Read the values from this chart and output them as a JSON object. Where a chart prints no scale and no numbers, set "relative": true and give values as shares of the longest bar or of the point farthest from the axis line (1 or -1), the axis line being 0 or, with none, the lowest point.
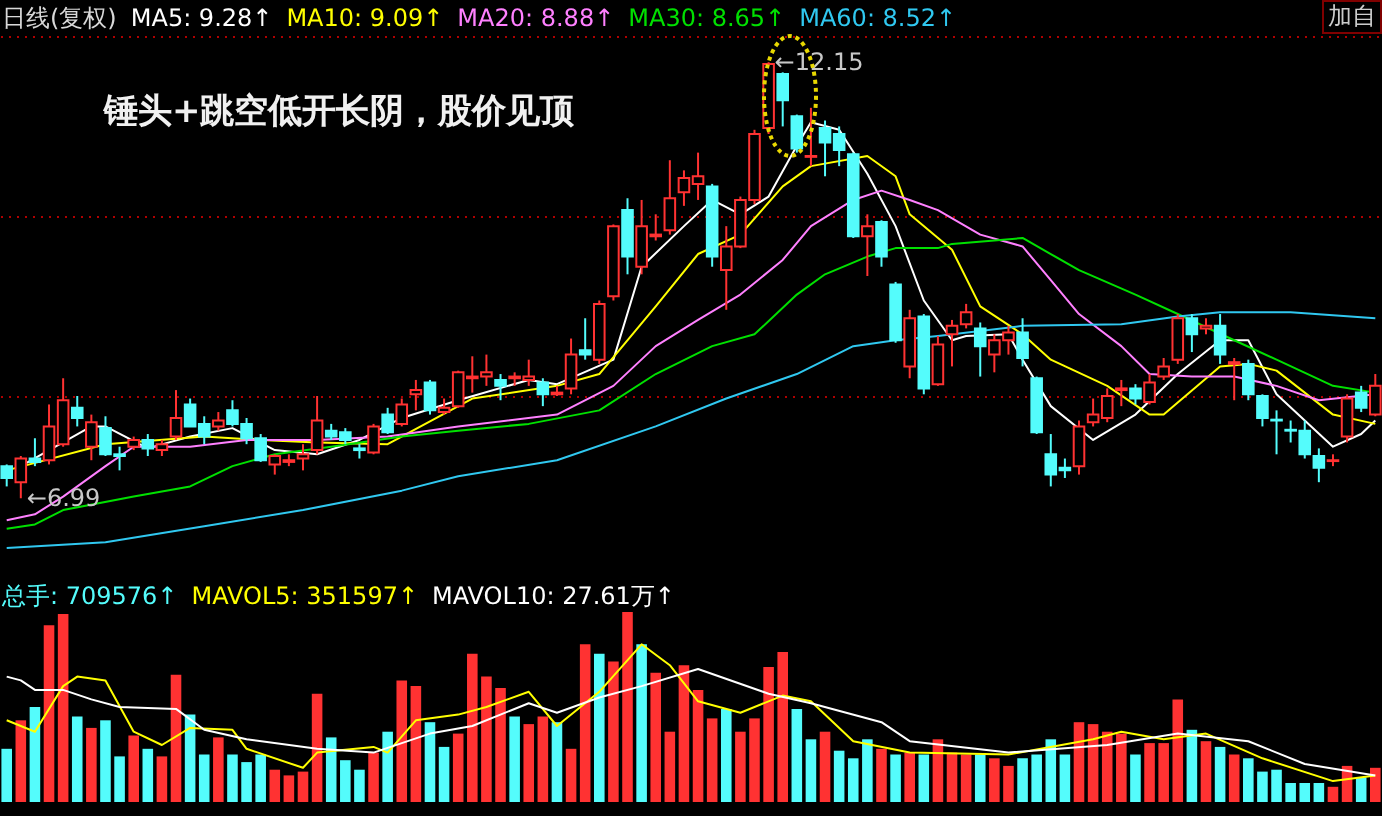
{
  "chart_data": [
    {
      "type": "candlestick",
      "categories": [
        null,
        null,
        null,
        null,
        null,
        null,
        null,
        null,
        null,
        null,
        null,
        null,
        null,
        null,
        null,
        null,
        null,
        null,
        null,
        null,
        null,
        null,
        null,
        null,
        null,
        null,
        null,
        null,
        null,
        null,
        null,
        null,
        null,
        null,
        null,
        null,
        null,
        null,
        null,
        null,
        null,
        null,
        null,
        null,
        null,
        null,
        null,
        null,
        null,
        null,
        null,
        null,
        null,
        null,
        null,
        null,
        null,
        null,
        null,
        null,
        null,
        null,
        null,
        null,
        null,
        null,
        null,
        null,
        null,
        null,
        null,
        null,
        null,
        null,
        null,
        null,
        null,
        null,
        null,
        null,
        null,
        null,
        null,
        null,
        null,
        null,
        null,
        null,
        null,
        null,
        null,
        null,
        null,
        null,
        null,
        null,
        null,
        null
      ],
      "ohlc": [
        [
          7.37,
          7.39,
          7.13,
          7.23
        ],
        [
          7.18,
          7.49,
          6.99,
          7.46
        ],
        [
          7.46,
          7.7,
          7.37,
          7.42
        ],
        [
          7.44,
          8.1,
          7.39,
          7.84
        ],
        [
          7.63,
          8.41,
          7.6,
          8.15
        ],
        [
          8.06,
          8.2,
          7.84,
          7.94
        ],
        [
          7.6,
          7.98,
          7.44,
          7.89
        ],
        [
          7.82,
          7.96,
          7.49,
          7.51
        ],
        [
          7.51,
          7.6,
          7.32,
          7.49
        ],
        [
          7.6,
          7.72,
          7.56,
          7.68
        ],
        [
          7.68,
          7.75,
          7.49,
          7.58
        ],
        [
          7.56,
          7.68,
          7.49,
          7.63
        ],
        [
          7.72,
          8.27,
          7.68,
          7.94
        ],
        [
          8.1,
          8.17,
          7.84,
          7.84
        ],
        [
          7.87,
          7.96,
          7.63,
          7.72
        ],
        [
          7.84,
          8.01,
          7.79,
          7.91
        ],
        [
          8.03,
          8.15,
          7.84,
          7.87
        ],
        [
          7.87,
          7.94,
          7.63,
          7.7
        ],
        [
          7.7,
          7.75,
          7.42,
          7.44
        ],
        [
          7.39,
          7.51,
          7.27,
          7.49
        ],
        [
          7.42,
          7.51,
          7.37,
          7.44
        ],
        [
          7.46,
          7.63,
          7.32,
          7.51
        ],
        [
          7.56,
          8.2,
          7.51,
          7.91
        ],
        [
          7.79,
          7.87,
          7.68,
          7.72
        ],
        [
          7.77,
          7.82,
          7.63,
          7.68
        ],
        [
          7.58,
          7.63,
          7.46,
          7.56
        ],
        [
          7.53,
          7.87,
          7.51,
          7.84
        ],
        [
          7.98,
          8.06,
          7.75,
          7.77
        ],
        [
          7.87,
          8.17,
          7.84,
          8.1
        ],
        [
          8.22,
          8.39,
          8.03,
          8.27
        ],
        [
          8.36,
          8.39,
          7.98,
          8.03
        ],
        [
          8.01,
          8.17,
          7.98,
          8.06
        ],
        [
          8.08,
          8.5,
          8.06,
          8.48
        ],
        [
          8.41,
          8.67,
          8.24,
          8.43
        ],
        [
          8.43,
          8.69,
          8.32,
          8.48
        ],
        [
          8.39,
          8.46,
          8.15,
          8.32
        ],
        [
          8.41,
          8.48,
          8.32,
          8.43
        ],
        [
          8.39,
          8.63,
          8.32,
          8.43
        ],
        [
          8.36,
          8.41,
          8.08,
          8.22
        ],
        [
          8.22,
          8.32,
          8.2,
          8.24
        ],
        [
          8.29,
          8.88,
          8.22,
          8.69
        ],
        [
          8.74,
          9.12,
          8.63,
          8.69
        ],
        [
          8.63,
          9.33,
          8.58,
          9.29
        ],
        [
          9.38,
          10.23,
          9.33,
          10.21
        ],
        [
          10.4,
          10.54,
          9.64,
          9.85
        ],
        [
          9.73,
          10.52,
          9.64,
          10.21
        ],
        [
          10.09,
          10.35,
          10.04,
          10.11
        ],
        [
          10.16,
          10.99,
          10.11,
          10.54
        ],
        [
          10.61,
          10.87,
          10.45,
          10.78
        ],
        [
          10.71,
          11.08,
          10.52,
          10.8
        ],
        [
          10.68,
          10.71,
          9.73,
          9.85
        ],
        [
          9.69,
          10.21,
          9.22,
          9.97
        ],
        [
          9.97,
          10.56,
          9.95,
          10.52
        ],
        [
          10.52,
          11.35,
          10.47,
          11.3
        ],
        [
          11.37,
          12.15,
          11.3,
          12.13
        ],
        [
          12.01,
          12.03,
          11.39,
          11.7
        ],
        [
          11.51,
          11.53,
          11.08,
          11.13
        ],
        [
          11.03,
          11.61,
          10.92,
          11.04
        ],
        [
          11.37,
          11.46,
          10.8,
          11.2
        ],
        [
          11.3,
          11.39,
          10.92,
          11.11
        ],
        [
          11.06,
          11.08,
          10.07,
          10.09
        ],
        [
          10.09,
          10.35,
          9.62,
          10.21
        ],
        [
          10.26,
          10.28,
          9.73,
          9.85
        ],
        [
          9.52,
          9.55,
          8.83,
          8.86
        ],
        [
          8.55,
          9.22,
          8.41,
          9.12
        ],
        [
          9.14,
          9.17,
          8.22,
          8.29
        ],
        [
          8.34,
          8.91,
          8.32,
          8.81
        ],
        [
          8.93,
          9.1,
          8.55,
          9.03
        ],
        [
          9.05,
          9.29,
          9.0,
          9.19
        ],
        [
          9.0,
          9.07,
          8.43,
          8.79
        ],
        [
          8.69,
          8.93,
          8.48,
          8.86
        ],
        [
          8.86,
          9.03,
          8.69,
          8.95
        ],
        [
          8.95,
          9.12,
          8.55,
          8.65
        ],
        [
          8.41,
          8.43,
          7.75,
          7.77
        ],
        [
          7.51,
          7.75,
          7.13,
          7.27
        ],
        [
          7.35,
          7.46,
          7.23,
          7.32
        ],
        [
          7.37,
          7.91,
          7.27,
          7.84
        ],
        [
          7.89,
          8.17,
          7.84,
          7.98
        ],
        [
          7.94,
          8.29,
          7.89,
          8.2
        ],
        [
          8.27,
          8.39,
          8.08,
          8.29
        ],
        [
          8.29,
          8.34,
          8.1,
          8.17
        ],
        [
          8.13,
          8.46,
          8.1,
          8.36
        ],
        [
          8.43,
          8.65,
          8.39,
          8.55
        ],
        [
          8.63,
          9.17,
          8.58,
          9.12
        ],
        [
          9.12,
          9.17,
          8.72,
          8.93
        ],
        [
          9.0,
          9.12,
          8.93,
          9.03
        ],
        [
          9.03,
          9.17,
          8.58,
          8.69
        ],
        [
          8.58,
          8.65,
          8.15,
          8.6
        ],
        [
          8.58,
          8.63,
          8.15,
          8.22
        ],
        [
          8.2,
          8.22,
          7.84,
          7.94
        ],
        [
          7.92,
          8.03,
          7.51,
          7.91
        ],
        [
          7.8,
          7.91,
          7.65,
          7.79
        ],
        [
          7.79,
          7.91,
          7.46,
          7.51
        ],
        [
          7.49,
          7.58,
          7.18,
          7.35
        ],
        [
          7.43,
          7.51,
          7.37,
          7.44
        ],
        [
          7.72,
          8.22,
          7.65,
          8.17
        ],
        [
          8.24,
          8.32,
          8.01,
          8.06
        ],
        [
          7.98,
          8.46,
          7.96,
          8.32
        ]
      ],
      "series": [
        {
          "name": "MA5: 9.28↑",
          "type": "line",
          "color": "#ffffff",
          "values": [
            null,
            7.37,
            null,
            null,
            null,
            null,
            7.84,
            7.84,
            null,
            null,
            7.58,
            null,
            null,
            7.72,
            null,
            null,
            7.82,
            null,
            null,
            7.56,
            null,
            null,
            7.51,
            null,
            null,
            7.68,
            null,
            null,
            7.94,
            null,
            null,
            null,
            8.15,
            null,
            null,
            null,
            null,
            8.39,
            null,
            8.34,
            null,
            null,
            null,
            8.63,
            null,
            9.73,
            null,
            null,
            10.21,
            null,
            10.52,
            null,
            10.35,
            null,
            10.56,
            null,
            11.16,
            11.44,
            null,
            11.35,
            null,
            10.83,
            null,
            10.21,
            null,
            9.33,
            null,
            8.86,
            8.91,
            null,
            null,
            8.93,
            8.63,
            null,
            8.08,
            null,
            null,
            7.68,
            null,
            null,
            7.98,
            null,
            null,
            8.46,
            null,
            null,
            8.86,
            null,
            8.86,
            null,
            8.22,
            null,
            null,
            null,
            7.6,
            null,
            7.75,
            7.91
          ]
        },
        {
          "name": "MA10: 9.09↑",
          "type": "line",
          "color": "#ffff00",
          "values": [
            7.32,
            null,
            null,
            null,
            null,
            null,
            null,
            7.63,
            null,
            null,
            null,
            null,
            null,
            null,
            7.72,
            null,
            null,
            null,
            7.68,
            null,
            null,
            null,
            7.65,
            null,
            null,
            null,
            null,
            7.63,
            null,
            null,
            null,
            null,
            null,
            8.17,
            null,
            null,
            null,
            null,
            null,
            8.32,
            null,
            null,
            8.46,
            null,
            null,
            null,
            9.26,
            null,
            null,
            9.88,
            null,
            null,
            10.11,
            null,
            null,
            10.68,
            null,
            10.92,
            null,
            null,
            null,
            11.04,
            null,
            10.8,
            10.35,
            null,
            null,
            9.93,
            null,
            9.26,
            null,
            null,
            8.93,
            null,
            8.63,
            null,
            null,
            null,
            8.32,
            null,
            null,
            7.98,
            7.98,
            null,
            null,
            null,
            8.55,
            null,
            8.58,
            null,
            8.5,
            null,
            null,
            null,
            7.98,
            null,
            null,
            7.87
          ]
        },
        {
          "name": "MA20: 8.88↑",
          "type": "line",
          "color": "#ff80ff",
          "values": [
            6.73,
            null,
            6.8,
            null,
            7.01,
            null,
            null,
            7.37,
            null,
            7.6,
            null,
            null,
            null,
            7.6,
            null,
            null,
            null,
            7.68,
            null,
            null,
            null,
            null,
            7.68,
            null,
            null,
            null,
            null,
            7.72,
            null,
            null,
            null,
            null,
            7.84,
            null,
            null,
            null,
            null,
            null,
            null,
            7.98,
            null,
            null,
            null,
            8.32,
            null,
            null,
            8.79,
            null,
            null,
            9.1,
            null,
            null,
            9.4,
            null,
            null,
            9.81,
            null,
            10.21,
            null,
            null,
            10.52,
            null,
            10.63,
            null,
            10.52,
            null,
            10.4,
            null,
            null,
            10.11,
            null,
            null,
            9.97,
            null,
            9.57,
            null,
            9.17,
            null,
            null,
            8.79,
            null,
            8.46,
            null,
            null,
            8.43,
            null,
            null,
            8.43,
            null,
            null,
            8.32,
            null,
            null,
            8.15,
            null,
            null,
            null,
            8.22
          ]
        },
        {
          "name": "MA30: 8.65↑",
          "type": "line",
          "color": "#00e000",
          "values": [
            6.63,
            null,
            6.68,
            null,
            6.85,
            null,
            null,
            null,
            null,
            7.01,
            null,
            null,
            null,
            7.13,
            null,
            null,
            7.37,
            null,
            null,
            7.51,
            null,
            null,
            null,
            7.6,
            null,
            null,
            null,
            null,
            7.72,
            null,
            null,
            null,
            7.79,
            null,
            null,
            null,
            null,
            7.87,
            null,
            null,
            null,
            null,
            8.03,
            null,
            null,
            null,
            8.46,
            null,
            null,
            null,
            8.79,
            null,
            null,
            8.93,
            null,
            null,
            9.4,
            null,
            9.64,
            null,
            null,
            9.85,
            null,
            9.95,
            null,
            null,
            9.95,
            10.0,
            null,
            null,
            10.04,
            null,
            10.07,
            null,
            9.88,
            null,
            9.69,
            null,
            null,
            null,
            9.4,
            null,
            null,
            9.17,
            null,
            null,
            null,
            8.86,
            null,
            null,
            8.63,
            null,
            null,
            null,
            8.32,
            null,
            null,
            8.24
          ]
        },
        {
          "name": "MA60: 8.52↑",
          "type": "line",
          "color": "#30c8f0",
          "values": [
            6.4,
            null,
            null,
            null,
            null,
            null,
            null,
            6.47,
            null,
            null,
            null,
            null,
            null,
            null,
            6.66,
            null,
            null,
            null,
            null,
            null,
            null,
            6.85,
            null,
            null,
            null,
            null,
            null,
            null,
            7.08,
            null,
            null,
            null,
            7.25,
            null,
            null,
            null,
            null,
            null,
            null,
            7.44,
            null,
            null,
            null,
            null,
            null,
            null,
            7.84,
            null,
            null,
            null,
            null,
            8.17,
            null,
            null,
            null,
            null,
            8.46,
            null,
            null,
            null,
            8.79,
            null,
            null,
            8.86,
            null,
            null,
            8.91,
            null,
            null,
            null,
            null,
            null,
            9.03,
            null,
            null,
            null,
            null,
            null,
            null,
            9.05,
            null,
            null,
            null,
            9.14,
            null,
            null,
            9.19,
            null,
            null,
            null,
            null,
            9.19,
            null,
            null,
            null,
            null,
            null,
            9.12
          ]
        }
      ],
      "ylim": [
        6.07,
        12.46
      ],
      "yticks": [
        {
          "value": 12.46,
          "label": null
        },
        {
          "value": 10.33,
          "label": null
        },
        {
          "value": 8.2,
          "label": null
        }
      ],
      "grid": "y",
      "annotations": [
        "日线(复权)",
        "锤头+跳空低开长阴，股价见顶",
        "加自",
        "←12.15",
        "←6.99"
      ]
    },
    {
      "type": "bar",
      "relative": true,
      "categories": [
        null,
        null,
        null,
        null,
        null,
        null,
        null,
        null,
        null,
        null,
        null,
        null,
        null,
        null,
        null,
        null,
        null,
        null,
        null,
        null,
        null,
        null,
        null,
        null,
        null,
        null,
        null,
        null,
        null,
        null,
        null,
        null,
        null,
        null,
        null,
        null,
        null,
        null,
        null,
        null,
        null,
        null,
        null,
        null,
        null,
        null,
        null,
        null,
        null,
        null,
        null,
        null,
        null,
        null,
        null,
        null,
        null,
        null,
        null,
        null,
        null,
        null,
        null,
        null,
        null,
        null,
        null,
        null,
        null,
        null,
        null,
        null,
        null,
        null,
        null,
        null,
        null,
        null,
        null,
        null,
        null,
        null,
        null,
        null,
        null,
        null,
        null,
        null,
        null,
        null,
        null,
        null,
        null,
        null,
        null,
        null,
        null,
        null
      ],
      "series": [
        {
          "name": "总手: 709576↑",
          "type": "bar",
          "color": "#54fcfc",
          "values": [
            0.28,
            0.43,
            0.5,
            0.93,
            0.99,
            0.45,
            0.39,
            0.43,
            0.24,
            0.35,
            0.28,
            0.24,
            0.67,
            0.46,
            0.25,
            0.34,
            0.25,
            0.21,
            0.25,
            0.17,
            0.14,
            0.16,
            0.57,
            0.34,
            0.22,
            0.17,
            0.26,
            0.37,
            0.64,
            0.61,
            0.42,
            0.29,
            0.36,
            0.78,
            0.66,
            0.6,
            0.45,
            0.41,
            0.45,
            0.42,
            0.28,
            0.83,
            0.78,
            0.74,
            1,
            0.83,
            0.68,
            0.37,
            0.72,
            0.59,
            0.44,
            0.49,
            0.37,
            0.44,
            0.71,
            0.79,
            0.49,
            0.33,
            0.37,
            0.27,
            0.23,
            0.33,
            0.28,
            0.25,
            0.26,
            0.25,
            0.33,
            0.26,
            0.25,
            0.25,
            0.23,
            0.19,
            0.23,
            0.25,
            0.33,
            0.25,
            0.42,
            0.41,
            0.37,
            0.36,
            0.25,
            0.31,
            0.31,
            0.54,
            0.38,
            0.32,
            0.29,
            0.25,
            0.23,
            0.16,
            0.17,
            0.1,
            0.1,
            0.1,
            0.08,
            0.19,
            0.13,
            0.18
          ],
          "colors": [
            "#54fcfc",
            "#ff3232",
            "#54fcfc",
            "#ff3232",
            "#ff3232",
            "#54fcfc",
            "#ff3232",
            "#54fcfc",
            "#54fcfc",
            "#ff3232",
            "#54fcfc",
            "#ff3232",
            "#ff3232",
            "#54fcfc",
            "#54fcfc",
            "#ff3232",
            "#54fcfc",
            "#54fcfc",
            "#54fcfc",
            "#ff3232",
            "#ff3232",
            "#ff3232",
            "#ff3232",
            "#54fcfc",
            "#54fcfc",
            "#54fcfc",
            "#ff3232",
            "#54fcfc",
            "#ff3232",
            "#ff3232",
            "#54fcfc",
            "#54fcfc",
            "#ff3232",
            "#ff3232",
            "#ff3232",
            "#ff3232",
            "#54fcfc",
            "#ff3232",
            "#ff3232",
            "#54fcfc",
            "#ff3232",
            "#ff3232",
            "#54fcfc",
            "#ff3232",
            "#ff3232",
            "#54fcfc",
            "#ff3232",
            "#ff3232",
            "#ff3232",
            "#ff3232",
            "#ff3232",
            "#54fcfc",
            "#ff3232",
            "#ff3232",
            "#ff3232",
            "#ff3232",
            "#54fcfc",
            "#54fcfc",
            "#ff3232",
            "#54fcfc",
            "#54fcfc",
            "#54fcfc",
            "#ff3232",
            "#54fcfc",
            "#ff3232",
            "#54fcfc",
            "#ff3232",
            "#ff3232",
            "#ff3232",
            "#54fcfc",
            "#ff3232",
            "#ff3232",
            "#54fcfc",
            "#54fcfc",
            "#54fcfc",
            "#54fcfc",
            "#ff3232",
            "#ff3232",
            "#ff3232",
            "#ff3232",
            "#54fcfc",
            "#ff3232",
            "#ff3232",
            "#ff3232",
            "#54fcfc",
            "#ff3232",
            "#54fcfc",
            "#ff3232",
            "#54fcfc",
            "#54fcfc",
            "#54fcfc",
            "#54fcfc",
            "#54fcfc",
            "#54fcfc",
            "#ff3232",
            "#ff3232",
            "#54fcfc",
            "#ff3232"
          ]
        },
        {
          "name": "MAVOL5: 351597↑",
          "type": "line",
          "color": "#ffff00",
          "values": [
            0.43,
            null,
            0.37,
            null,
            0.61,
            0.66,
            null,
            0.64,
            null,
            0.37,
            null,
            0.3,
            null,
            0.39,
            null,
            null,
            0.38,
            0.28,
            null,
            null,
            null,
            0.18,
            0.26,
            null,
            null,
            null,
            0.29,
            0.26,
            null,
            0.43,
            null,
            null,
            0.46,
            null,
            0.5,
            null,
            null,
            0.58,
            null,
            0.4,
            null,
            null,
            0.58,
            null,
            null,
            0.83,
            null,
            0.72,
            null,
            0.53,
            null,
            null,
            0.47,
            null,
            null,
            0.56,
            null,
            0.53,
            null,
            null,
            0.32,
            null,
            null,
            null,
            0.26,
            null,
            null,
            null,
            null,
            null,
            null,
            0.25,
            null,
            null,
            null,
            null,
            null,
            0.33,
            null,
            0.37,
            null,
            null,
            0.33,
            null,
            null,
            0.36,
            null,
            null,
            null,
            0.23,
            null,
            null,
            null,
            null,
            0.11,
            null,
            null,
            0.14
          ]
        },
        {
          "name": "MAVOL10: 27.61万↑",
          "type": "line",
          "color": "#ffffff",
          "values": [
            0.66,
            0.64,
            0.59,
            null,
            0.59,
            null,
            0.54,
            null,
            0.5,
            null,
            null,
            null,
            0.49,
            null,
            0.38,
            null,
            null,
            0.33,
            null,
            null,
            null,
            null,
            0.28,
            null,
            null,
            null,
            0.26,
            null,
            null,
            null,
            0.36,
            null,
            null,
            0.4,
            null,
            null,
            null,
            0.52,
            null,
            0.47,
            null,
            null,
            0.55,
            null,
            null,
            0.61,
            null,
            null,
            null,
            0.7,
            null,
            null,
            null,
            null,
            0.57,
            null,
            null,
            0.52,
            null,
            null,
            null,
            null,
            0.42,
            null,
            0.32,
            null,
            null,
            null,
            null,
            null,
            null,
            0.26,
            null,
            null,
            null,
            null,
            null,
            null,
            0.3,
            null,
            null,
            null,
            null,
            0.36,
            null,
            null,
            null,
            null,
            0.32,
            null,
            null,
            null,
            0.2,
            null,
            null,
            null,
            null,
            0.14
          ]
        }
      ],
      "grid": false
    }
  ]
}
